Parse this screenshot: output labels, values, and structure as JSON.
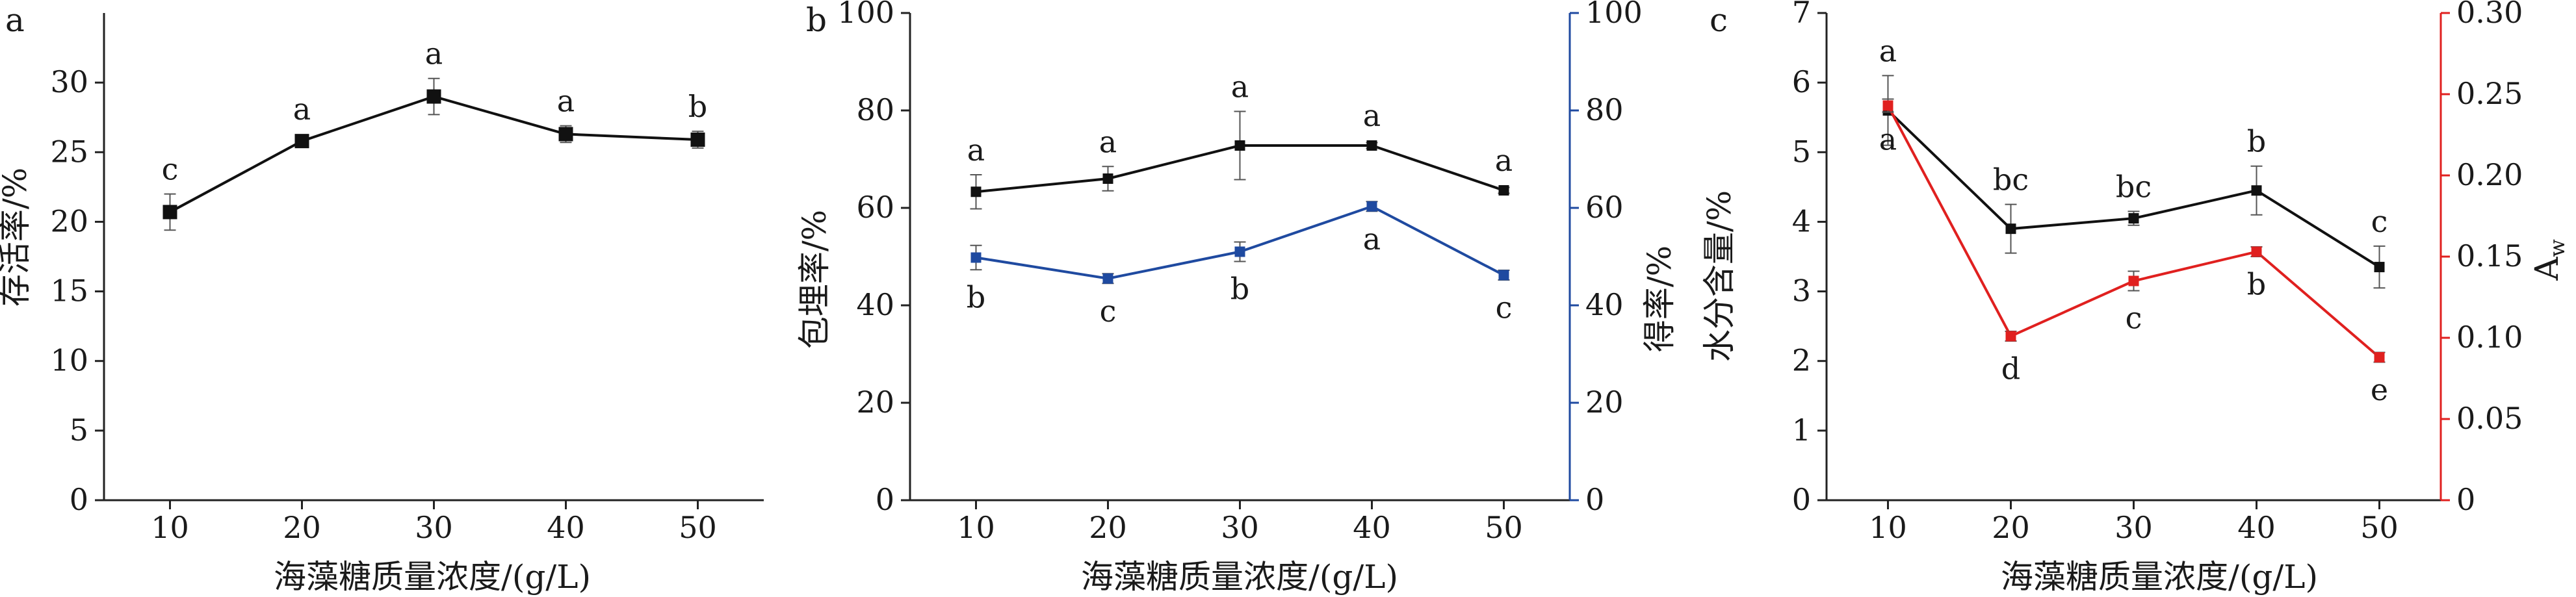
{
  "chart_data": [
    {
      "id": "a",
      "panel_label": "a",
      "type": "line",
      "xlabel": "海藻糖质量浓度/(g/L)",
      "ylabel": "存活率/%",
      "xlim": [
        5,
        55
      ],
      "ylim": [
        0,
        35
      ],
      "x_ticks": [
        10,
        20,
        30,
        40,
        50
      ],
      "y_ticks": [
        0,
        5,
        10,
        15,
        20,
        25,
        30
      ],
      "grid": false,
      "series": [
        {
          "color": "#111111",
          "marker": "square",
          "x": [
            10,
            20,
            30,
            40,
            50
          ],
          "y": [
            20.7,
            25.8,
            29.0,
            26.3,
            25.9
          ],
          "err": [
            1.3,
            0.4,
            1.3,
            0.6,
            0.6
          ],
          "letters": [
            "c",
            "a",
            "a",
            "a",
            "b"
          ],
          "letter_pos": "above"
        }
      ]
    },
    {
      "id": "b",
      "panel_label": "b",
      "type": "line",
      "xlabel": "海藻糖质量浓度/(g/L)",
      "ylabel": "包埋率/%",
      "ylabel_right": "得率/%",
      "xlim": [
        5,
        55
      ],
      "ylim": [
        0,
        100
      ],
      "ylim_right": [
        0,
        100
      ],
      "x_ticks": [
        10,
        20,
        30,
        40,
        50
      ],
      "y_ticks": [
        0,
        20,
        40,
        60,
        80,
        100
      ],
      "y_ticks_right": [
        0,
        20,
        40,
        60,
        80,
        100
      ],
      "right_axis_color": "#1f4aa0",
      "grid": false,
      "series": [
        {
          "axis": "left",
          "color": "#111111",
          "marker": "square",
          "x": [
            10,
            20,
            30,
            40,
            50
          ],
          "y": [
            63.3,
            66.0,
            72.8,
            72.8,
            63.6
          ],
          "err": [
            3.5,
            2.5,
            7.0,
            0.6,
            0.6
          ],
          "letters": [
            "a",
            "a",
            "a",
            "a",
            "a"
          ],
          "letter_pos": "above"
        },
        {
          "axis": "right",
          "color": "#1f4aa0",
          "marker": "square",
          "x": [
            10,
            20,
            30,
            40,
            50
          ],
          "y": [
            49.8,
            45.5,
            51.0,
            60.3,
            46.2
          ],
          "err": [
            2.5,
            1.0,
            2.0,
            1.0,
            1.0
          ],
          "letters": [
            "b",
            "c",
            "b",
            "a",
            "c"
          ],
          "letter_pos": "below"
        }
      ]
    },
    {
      "id": "c",
      "panel_label": "c",
      "type": "line",
      "xlabel": "海藻糖质量浓度/(g/L)",
      "ylabel": "水分含量/%",
      "ylabel_right": "A",
      "ylabel_right_sub": "w",
      "xlim": [
        5,
        55
      ],
      "ylim": [
        0,
        7
      ],
      "ylim_right": [
        0,
        0.3
      ],
      "x_ticks": [
        10,
        20,
        30,
        40,
        50
      ],
      "y_ticks": [
        0,
        1,
        2,
        3,
        4,
        5,
        6,
        7
      ],
      "y_ticks_right": [
        0,
        0.05,
        0.1,
        0.15,
        0.2,
        0.25,
        0.3
      ],
      "y_tick_labels_right": [
        "0",
        "0.05",
        "0.10",
        "0.15",
        "0.20",
        "0.25",
        "0.30"
      ],
      "right_axis_color": "#e0201f",
      "grid": false,
      "series": [
        {
          "axis": "left",
          "color": "#111111",
          "marker": "square",
          "x": [
            10,
            20,
            30,
            40,
            50
          ],
          "y": [
            5.6,
            3.9,
            4.05,
            4.45,
            3.35
          ],
          "err": [
            0.5,
            0.35,
            0.1,
            0.35,
            0.3
          ],
          "letters": [
            "a",
            "bc",
            "bc",
            "b",
            "c"
          ],
          "letter_pos": "above"
        },
        {
          "axis": "right",
          "color": "#e0201f",
          "marker": "square",
          "x": [
            10,
            20,
            30,
            40,
            50
          ],
          "y": [
            0.243,
            0.101,
            0.135,
            0.153,
            0.088
          ],
          "err": [
            0.004,
            0.003,
            0.006,
            0.003,
            0.003
          ],
          "letters": [
            "a",
            "d",
            "c",
            "b",
            "e"
          ],
          "letter_pos": "below"
        }
      ]
    }
  ]
}
